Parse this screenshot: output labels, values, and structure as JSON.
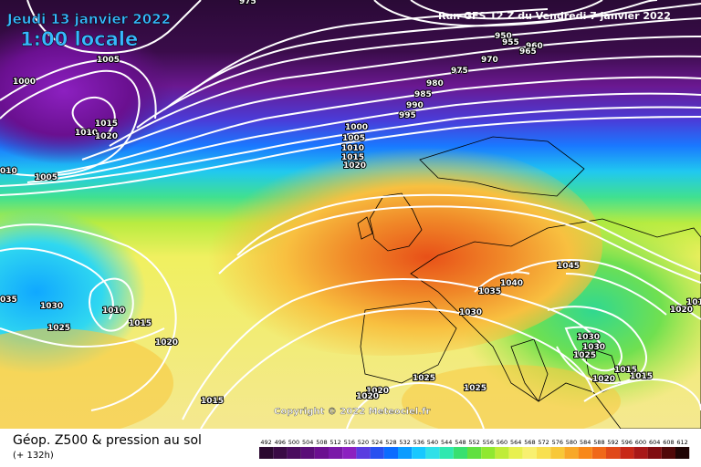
{
  "header": {
    "date": "Jeudi 13 janvier 2022",
    "time": "1:00 locale",
    "run": "Run GFS 12 Z du Vendredi 7 janvier 2022"
  },
  "copyright": "Copyright © 2022 Meteociel.fr",
  "footer": {
    "title": "Géop. Z500 & pression au sol",
    "subtitle": "(+ 132h)"
  },
  "scale": {
    "labels": [
      "492",
      "496",
      "500",
      "504",
      "508",
      "512",
      "516",
      "520",
      "524",
      "528",
      "532",
      "536",
      "540",
      "544",
      "548",
      "552",
      "556",
      "560",
      "564",
      "568",
      "572",
      "576",
      "580",
      "584",
      "588",
      "592",
      "596",
      "600",
      "604",
      "608",
      "612"
    ],
    "colors": [
      "#2b0830",
      "#3a0a45",
      "#4a0c5e",
      "#5a0e78",
      "#6b1090",
      "#7a18a8",
      "#8c20c0",
      "#5a3ce0",
      "#2850f0",
      "#0a6cff",
      "#0a9cff",
      "#18c8ff",
      "#30e0e8",
      "#30e8b0",
      "#38e070",
      "#60e040",
      "#90e830",
      "#c0ec38",
      "#e8f050",
      "#f8f070",
      "#f8e050",
      "#f8c838",
      "#f8a828",
      "#f88818",
      "#f06818",
      "#e04818",
      "#c82818",
      "#a81818",
      "#800c10",
      "#500808",
      "#200404"
    ]
  },
  "pressure_labels": [
    {
      "text": "975"
    },
    {
      "text": "1005"
    },
    {
      "text": "1000"
    },
    {
      "text": "1015"
    },
    {
      "text": "1010"
    },
    {
      "text": "1020"
    },
    {
      "text": "010"
    },
    {
      "text": "1005"
    },
    {
      "text": "950"
    },
    {
      "text": "955"
    },
    {
      "text": "960"
    },
    {
      "text": "965"
    },
    {
      "text": "970"
    },
    {
      "text": "975"
    },
    {
      "text": "980"
    },
    {
      "text": "985"
    },
    {
      "text": "990"
    },
    {
      "text": "995"
    },
    {
      "text": "1000"
    },
    {
      "text": "1005"
    },
    {
      "text": "1010"
    },
    {
      "text": "1015"
    },
    {
      "text": "1020"
    },
    {
      "text": "035"
    },
    {
      "text": "1030"
    },
    {
      "text": "1025"
    },
    {
      "text": "1010"
    },
    {
      "text": "1015"
    },
    {
      "text": "1020"
    },
    {
      "text": "1040"
    },
    {
      "text": "1035"
    },
    {
      "text": "1030"
    },
    {
      "text": "1045"
    },
    {
      "text": "101"
    },
    {
      "text": "1020"
    },
    {
      "text": "1030"
    },
    {
      "text": "1030"
    },
    {
      "text": "1025"
    },
    {
      "text": "1020"
    },
    {
      "text": "1015"
    },
    {
      "text": "1015"
    },
    {
      "text": "1025"
    },
    {
      "text": "1025"
    },
    {
      "text": "1020"
    },
    {
      "text": "1020"
    },
    {
      "text": "1015"
    }
  ]
}
